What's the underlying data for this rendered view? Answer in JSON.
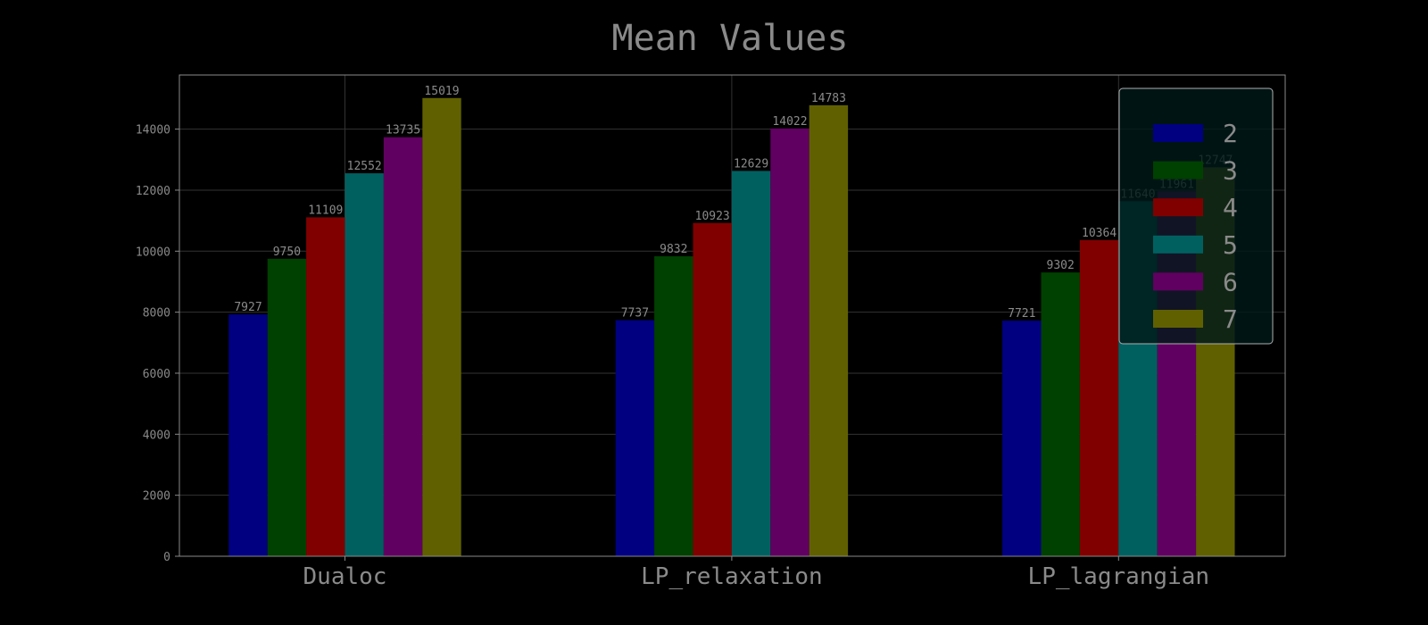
{
  "chart_data": {
    "type": "bar",
    "title": "Mean Values",
    "xlabel": "",
    "ylabel": "",
    "categories": [
      "Dualoc",
      "LP_relaxation",
      "LP_lagrangian"
    ],
    "series": [
      {
        "name": "2",
        "values": [
          7927,
          7737,
          7721
        ],
        "color": "#000080"
      },
      {
        "name": "3",
        "values": [
          9750,
          9832,
          9302
        ],
        "color": "#004000"
      },
      {
        "name": "4",
        "values": [
          11109,
          10923,
          10364
        ],
        "color": "#800000"
      },
      {
        "name": "5",
        "values": [
          12552,
          12629,
          11640
        ],
        "color": "#006060"
      },
      {
        "name": "6",
        "values": [
          13735,
          14022,
          11961
        ],
        "color": "#600060"
      },
      {
        "name": "7",
        "values": [
          15019,
          14783,
          12747
        ],
        "color": "#606000"
      }
    ],
    "ylim": [
      0,
      15774
    ],
    "yticks": [
      0,
      2000,
      4000,
      6000,
      8000,
      10000,
      12000,
      14000
    ],
    "grid": true,
    "legend_position": "top-right",
    "colors": {
      "background": "#000000",
      "text": "#8a8a8a",
      "grid": "#333333",
      "axes": "#8a8a8a"
    }
  }
}
